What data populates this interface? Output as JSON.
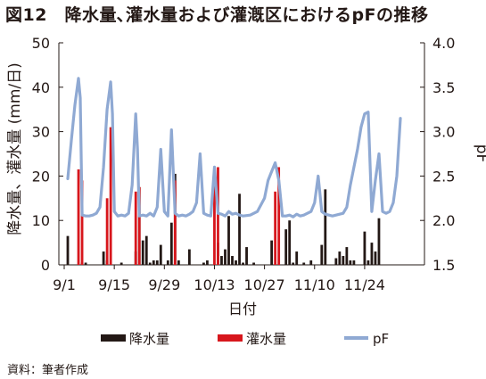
{
  "figure": {
    "title": "図12　降水量､灌水量および灌漑区におけるpFの推移",
    "source": "資料：筆者作成"
  },
  "chart_data": {
    "type": "bar+line",
    "title": "図12　降水量､灌水量および灌漑区におけるpFの推移",
    "xlabel": "日付",
    "ylabel_left": "降水量、灌水量 (mm/日)",
    "ylabel_right": "pF",
    "ylim_left": [
      0,
      50
    ],
    "ylim_right": [
      1.5,
      4.0
    ],
    "yticks_left": [
      "0",
      "10",
      "20",
      "30",
      "40",
      "50"
    ],
    "yticks_right": [
      "1.5",
      "2.0",
      "2.5",
      "3.0",
      "3.5",
      "4.0"
    ],
    "x_range_days": [
      0,
      92
    ],
    "x_ticks": [
      {
        "day": 0,
        "label": "9/1"
      },
      {
        "day": 14,
        "label": "9/15"
      },
      {
        "day": 28,
        "label": "9/29"
      },
      {
        "day": 42,
        "label": "10/13"
      },
      {
        "day": 56,
        "label": "10/27"
      },
      {
        "day": 70,
        "label": "11/10"
      },
      {
        "day": 84,
        "label": "11/24"
      }
    ],
    "grid": false,
    "legend_position": "bottom",
    "colors": {
      "rain": "#231815",
      "irrigation": "#d7161c",
      "pf": "#8fa9d3"
    },
    "series": [
      {
        "name": "降水量",
        "kind": "bar",
        "axis": "left",
        "points": [
          [
            1,
            6.5
          ],
          [
            5,
            0.5
          ],
          [
            6,
            0.5
          ],
          [
            11,
            3
          ],
          [
            12,
            1
          ],
          [
            16,
            0.5
          ],
          [
            20,
            3
          ],
          [
            21,
            17.5
          ],
          [
            22,
            5.5
          ],
          [
            23,
            6.5
          ],
          [
            24,
            0.5
          ],
          [
            25,
            1
          ],
          [
            26,
            1
          ],
          [
            27,
            4.5
          ],
          [
            29,
            1
          ],
          [
            30,
            9.5
          ],
          [
            31,
            20.5
          ],
          [
            32,
            1
          ],
          [
            35,
            3.5
          ],
          [
            39,
            0.5
          ],
          [
            40,
            1
          ],
          [
            43,
            5
          ],
          [
            44,
            2
          ],
          [
            45,
            3.5
          ],
          [
            46,
            11
          ],
          [
            47,
            2
          ],
          [
            48,
            1
          ],
          [
            49,
            16
          ],
          [
            50,
            0.5
          ],
          [
            51,
            4
          ],
          [
            53,
            0.5
          ],
          [
            58,
            5.5
          ],
          [
            62,
            8
          ],
          [
            63,
            10
          ],
          [
            64,
            0.5
          ],
          [
            65,
            3
          ],
          [
            67,
            0.5
          ],
          [
            69,
            1
          ],
          [
            72,
            4.5
          ],
          [
            73,
            17
          ],
          [
            76,
            1.5
          ],
          [
            77,
            3
          ],
          [
            78,
            2
          ],
          [
            79,
            4
          ],
          [
            80,
            1
          ],
          [
            81,
            1
          ],
          [
            84,
            7.5
          ],
          [
            85,
            1
          ],
          [
            86,
            5
          ],
          [
            87,
            3
          ],
          [
            88,
            10.5
          ]
        ]
      },
      {
        "name": "灌水量",
        "kind": "bar",
        "axis": "left",
        "points": [
          [
            4,
            21.5
          ],
          [
            5,
            19
          ],
          [
            12,
            15
          ],
          [
            13,
            31
          ],
          [
            20,
            16.5
          ],
          [
            21,
            17.5
          ],
          [
            31,
            19
          ],
          [
            42,
            18
          ],
          [
            43,
            22
          ],
          [
            59,
            16.5
          ],
          [
            60,
            22
          ]
        ]
      },
      {
        "name": "pF",
        "kind": "line",
        "axis": "right",
        "points": [
          [
            1,
            2.47
          ],
          [
            2,
            2.9
          ],
          [
            3,
            3.3
          ],
          [
            4,
            3.6
          ],
          [
            4.5,
            3.38
          ],
          [
            5,
            2.06
          ],
          [
            6,
            2.05
          ],
          [
            7,
            2.05
          ],
          [
            8,
            2.06
          ],
          [
            9,
            2.08
          ],
          [
            10,
            2.15
          ],
          [
            11,
            2.6
          ],
          [
            12,
            3.25
          ],
          [
            13,
            3.56
          ],
          [
            13.5,
            3.2
          ],
          [
            14,
            2.1
          ],
          [
            15,
            2.05
          ],
          [
            16,
            2.06
          ],
          [
            17,
            2.05
          ],
          [
            18,
            2.08
          ],
          [
            19,
            2.4
          ],
          [
            20,
            3.2
          ],
          [
            20.5,
            2.8
          ],
          [
            21,
            2.05
          ],
          [
            22,
            2.06
          ],
          [
            23,
            2.05
          ],
          [
            24,
            2.08
          ],
          [
            25,
            2.05
          ],
          [
            26,
            2.15
          ],
          [
            27,
            2.8
          ],
          [
            28,
            2.1
          ],
          [
            29,
            2.05
          ],
          [
            30,
            3.02
          ],
          [
            31,
            2.08
          ],
          [
            32,
            2.05
          ],
          [
            33,
            2.06
          ],
          [
            34,
            2.05
          ],
          [
            35,
            2.07
          ],
          [
            36,
            2.1
          ],
          [
            37,
            2.2
          ],
          [
            38,
            2.75
          ],
          [
            39,
            2.08
          ],
          [
            40,
            2.06
          ],
          [
            41,
            2.05
          ],
          [
            42,
            2.6
          ],
          [
            43,
            2.08
          ],
          [
            44,
            2.07
          ],
          [
            45,
            2.05
          ],
          [
            46,
            2.1
          ],
          [
            47,
            2.07
          ],
          [
            48,
            2.08
          ],
          [
            49,
            2.06
          ],
          [
            50,
            2.05
          ],
          [
            52,
            2.06
          ],
          [
            54,
            2.1
          ],
          [
            56,
            2.25
          ],
          [
            57,
            2.45
          ],
          [
            58,
            2.55
          ],
          [
            59,
            2.65
          ],
          [
            60,
            2.45
          ],
          [
            61,
            2.05
          ],
          [
            62,
            2.05
          ],
          [
            63,
            2.06
          ],
          [
            64,
            2.04
          ],
          [
            65,
            2.07
          ],
          [
            66,
            2.05
          ],
          [
            67,
            2.06
          ],
          [
            68,
            2.08
          ],
          [
            69,
            2.1
          ],
          [
            70,
            2.2
          ],
          [
            71,
            2.5
          ],
          [
            72,
            2.1
          ],
          [
            73,
            2.07
          ],
          [
            74,
            2.06
          ],
          [
            75,
            2.05
          ],
          [
            76,
            2.06
          ],
          [
            77,
            2.07
          ],
          [
            78,
            2.08
          ],
          [
            79,
            2.15
          ],
          [
            80,
            2.4
          ],
          [
            81,
            2.6
          ],
          [
            82,
            2.8
          ],
          [
            83,
            3.05
          ],
          [
            84,
            3.2
          ],
          [
            85,
            3.22
          ],
          [
            86,
            2.1
          ],
          [
            87,
            2.45
          ],
          [
            88,
            2.75
          ],
          [
            89,
            2.1
          ],
          [
            90,
            2.08
          ],
          [
            91,
            2.1
          ],
          [
            92,
            2.2
          ],
          [
            93,
            2.5
          ],
          [
            94,
            3.15
          ]
        ]
      }
    ]
  }
}
